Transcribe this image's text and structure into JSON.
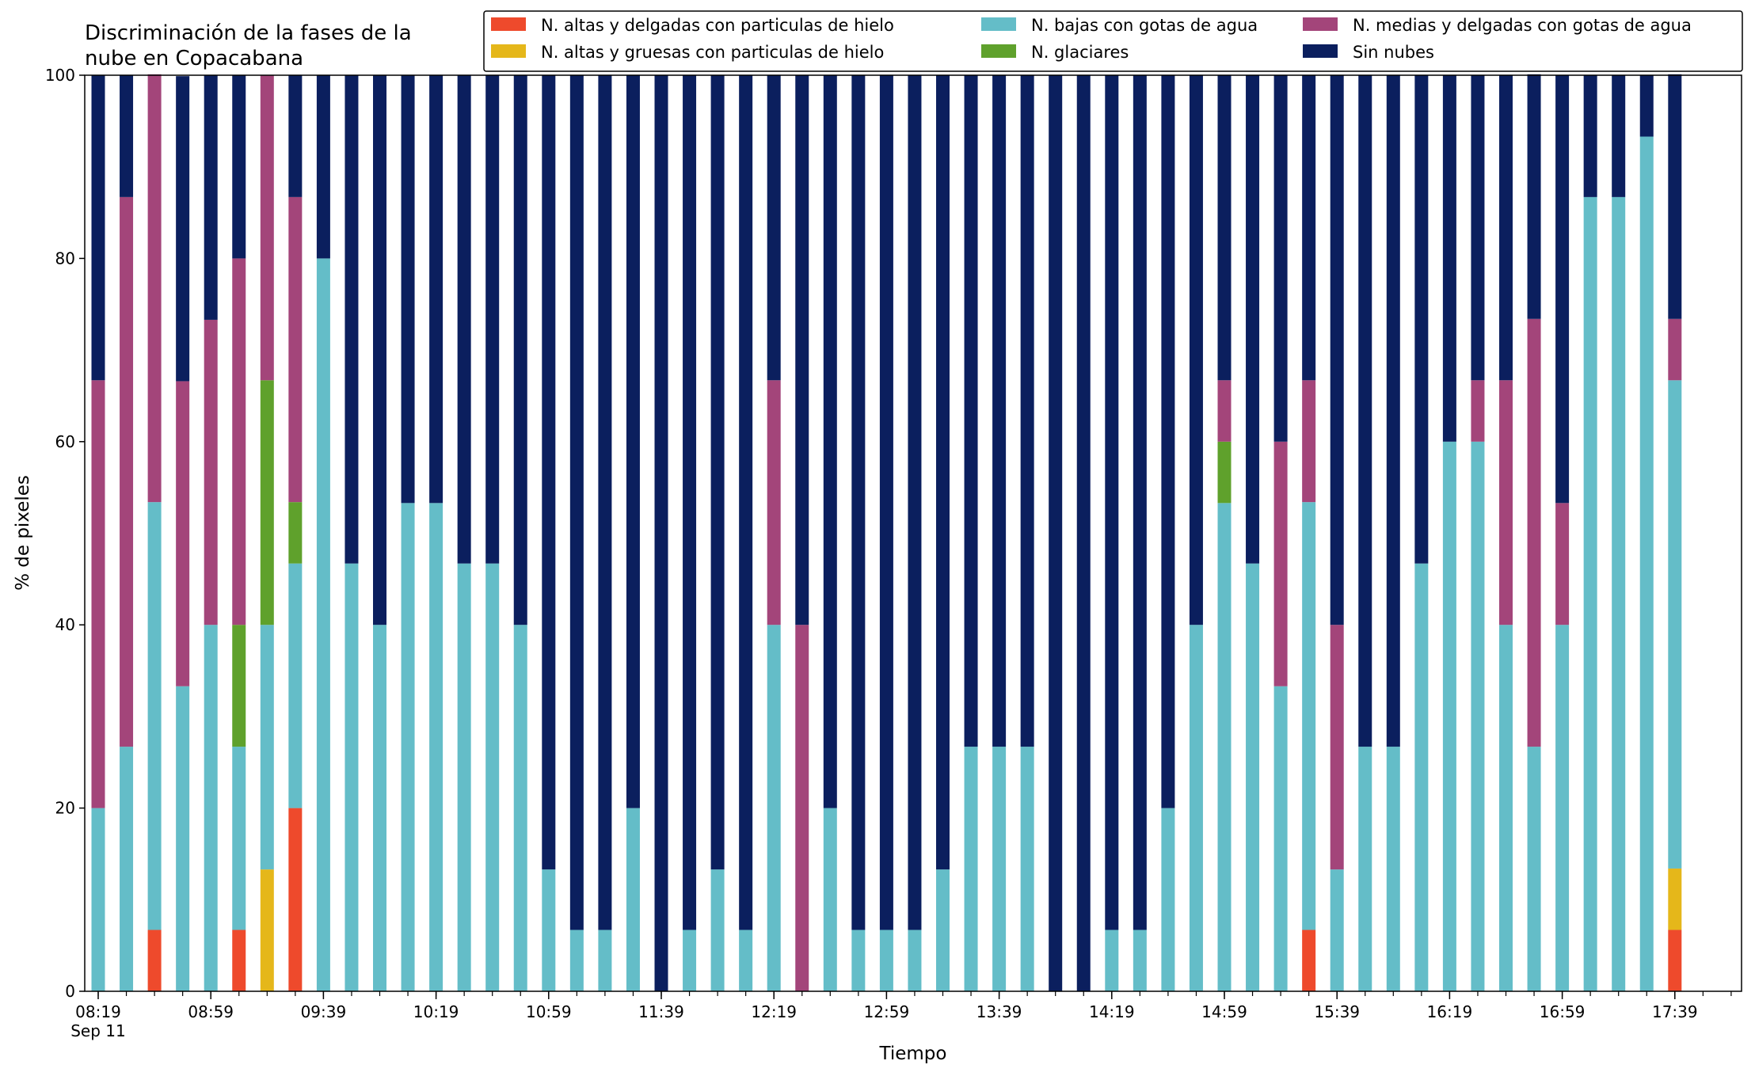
{
  "chart_data": {
    "type": "bar",
    "stacked": true,
    "title": "Discriminación de la fases de la\nnube en Copacabana",
    "xlabel": "Tiempo",
    "ylabel": "% de pixeles",
    "ylim": [
      0,
      100
    ],
    "yticks": [
      0,
      20,
      40,
      60,
      80,
      100
    ],
    "grid": false,
    "legend_position": "top-right",
    "x_start": "08:19",
    "x_step_minutes": 10,
    "xticks": [
      "08:19",
      "08:59",
      "09:39",
      "10:19",
      "10:59",
      "11:39",
      "12:19",
      "12:59",
      "13:39",
      "14:19",
      "14:59",
      "15:39",
      "16:19",
      "16:59",
      "17:39"
    ],
    "xtick_date": "Sep 11",
    "categories": [
      "08:19",
      "08:29",
      "08:39",
      "08:49",
      "08:59",
      "09:09",
      "09:19",
      "09:29",
      "09:39",
      "09:49",
      "09:59",
      "10:09",
      "10:19",
      "10:29",
      "10:39",
      "10:49",
      "10:59",
      "11:09",
      "11:19",
      "11:29",
      "11:39",
      "11:49",
      "11:59",
      "12:09",
      "12:19",
      "12:29",
      "12:39",
      "12:49",
      "12:59",
      "13:09",
      "13:19",
      "13:29",
      "13:39",
      "13:49",
      "13:59",
      "14:09",
      "14:19",
      "14:29",
      "14:39",
      "14:49",
      "14:59",
      "15:09",
      "15:19",
      "15:29",
      "15:39",
      "15:49",
      "15:59",
      "16:09",
      "16:19",
      "16:29",
      "16:39",
      "16:49",
      "16:59",
      "17:09",
      "17:19",
      "17:29",
      "17:39"
    ],
    "series": [
      {
        "name": "N. altas y delgadas con particulas de hielo",
        "color": "#ee4a2c",
        "values": [
          0,
          0,
          6.7,
          0,
          0,
          6.7,
          0,
          20,
          0,
          0,
          0,
          0,
          0,
          0,
          0,
          0,
          0,
          0,
          0,
          0,
          0,
          0,
          0,
          0,
          0,
          0,
          0,
          0,
          0,
          0,
          0,
          0,
          0,
          0,
          0,
          0,
          0,
          0,
          0,
          0,
          0,
          0,
          0,
          6.7,
          0,
          0,
          0,
          0,
          0,
          0,
          0,
          0,
          0,
          0,
          0,
          0,
          6.7
        ]
      },
      {
        "name": "N. altas y gruesas con particulas de hielo",
        "color": "#e5b71a",
        "values": [
          0,
          0,
          0,
          0,
          0,
          0,
          13.3,
          0,
          0,
          0,
          0,
          0,
          0,
          0,
          0,
          0,
          0,
          0,
          0,
          0,
          0,
          0,
          0,
          0,
          0,
          0,
          0,
          0,
          0,
          0,
          0,
          0,
          0,
          0,
          0,
          0,
          0,
          0,
          0,
          0,
          0,
          0,
          0,
          0,
          0,
          0,
          0,
          0,
          0,
          0,
          0,
          0,
          0,
          0,
          0,
          0,
          6.7
        ]
      },
      {
        "name": "N. bajas con gotas de agua",
        "color": "#64bdc8",
        "values": [
          20,
          26.7,
          46.7,
          33.3,
          40,
          20,
          26.7,
          26.7,
          80,
          46.7,
          40,
          53.3,
          53.3,
          46.7,
          46.7,
          40,
          13.3,
          6.7,
          6.7,
          20,
          0,
          6.7,
          13.3,
          6.7,
          40,
          0,
          20,
          6.7,
          6.7,
          6.7,
          13.3,
          26.7,
          26.7,
          26.7,
          0,
          0,
          6.7,
          6.7,
          20,
          40,
          53.3,
          46.7,
          33.3,
          46.7,
          13.3,
          26.7,
          26.7,
          46.7,
          60,
          60,
          40,
          26.7,
          40,
          86.7,
          86.7,
          93.3,
          53.3
        ]
      },
      {
        "name": "N. glaciares",
        "color": "#5fa12c",
        "values": [
          0,
          0,
          0,
          0,
          0,
          13.3,
          26.7,
          6.7,
          0,
          0,
          0,
          0,
          0,
          0,
          0,
          0,
          0,
          0,
          0,
          0,
          0,
          0,
          0,
          0,
          0,
          0,
          0,
          0,
          0,
          0,
          0,
          0,
          0,
          0,
          0,
          0,
          0,
          0,
          0,
          0,
          6.7,
          0,
          0,
          0,
          0,
          0,
          0,
          0,
          0,
          0,
          0,
          0,
          0,
          0,
          0,
          0,
          0
        ]
      },
      {
        "name": "N. medias y delgadas con gotas de agua",
        "color": "#a3457a",
        "values": [
          46.7,
          60,
          46.7,
          33.3,
          33.3,
          40,
          33.3,
          33.3,
          0,
          0,
          0,
          0,
          0,
          0,
          0,
          0,
          0,
          0,
          0,
          0,
          0,
          0,
          0,
          0,
          26.7,
          40,
          0,
          0,
          0,
          0,
          0,
          0,
          0,
          0,
          0,
          0,
          0,
          0,
          0,
          0,
          6.7,
          0,
          26.7,
          13.3,
          26.7,
          0,
          0,
          0,
          0,
          6.7,
          26.7,
          46.7,
          13.3,
          0,
          0,
          0,
          6.7
        ]
      },
      {
        "name": "Sin nubes",
        "color": "#0b1f5e",
        "values": [
          33.3,
          13.3,
          0,
          33.3,
          26.7,
          20,
          0,
          13.3,
          20,
          53.3,
          60,
          46.7,
          46.7,
          53.3,
          53.3,
          60,
          86.7,
          93.3,
          93.3,
          80,
          100,
          93.3,
          86.7,
          93.3,
          33.3,
          60,
          80,
          93.3,
          93.3,
          93.3,
          86.7,
          73.3,
          73.3,
          73.3,
          100,
          100,
          93.3,
          93.3,
          80,
          60,
          33.3,
          53.3,
          40,
          33.3,
          60,
          73.3,
          73.3,
          53.3,
          40,
          33.3,
          33.3,
          26.7,
          46.7,
          13.3,
          13.3,
          6.7,
          26.7
        ]
      }
    ]
  }
}
